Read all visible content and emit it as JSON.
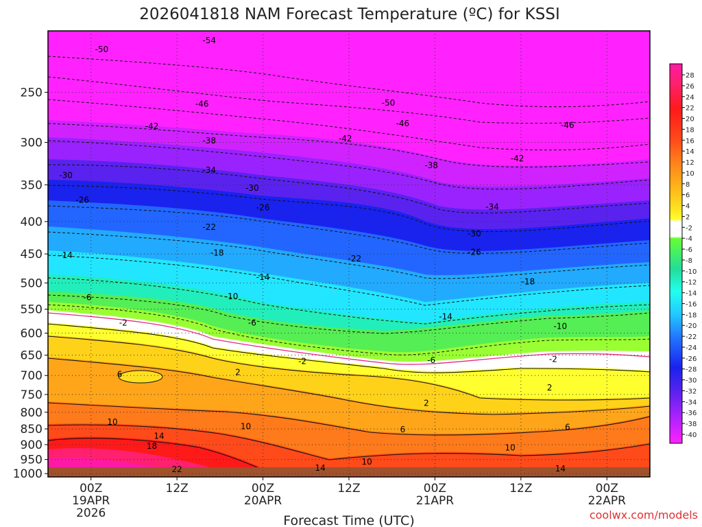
{
  "chart_data": {
    "type": "heatmap",
    "title": "2026041818 NAM Forecast Temperature (ºC) for KSSI",
    "xlabel": "Forecast Time (UTC)",
    "ylabel": "",
    "x_ticks": [
      {
        "hour": 6,
        "labels": [
          "00Z",
          "19APR",
          "2026"
        ]
      },
      {
        "hour": 18,
        "labels": [
          "12Z"
        ]
      },
      {
        "hour": 30,
        "labels": [
          "00Z",
          "20APR"
        ]
      },
      {
        "hour": 42,
        "labels": [
          "12Z"
        ]
      },
      {
        "hour": 54,
        "labels": [
          "00Z",
          "21APR"
        ]
      },
      {
        "hour": 66,
        "labels": [
          "12Z"
        ]
      },
      {
        "hour": 78,
        "labels": [
          "00Z",
          "22APR"
        ]
      }
    ],
    "xlim": [
      0,
      84
    ],
    "y_pressure_ticks": [
      250,
      300,
      350,
      400,
      450,
      500,
      550,
      600,
      650,
      700,
      750,
      800,
      850,
      900,
      950,
      1000
    ],
    "ylim_hPa": [
      200,
      1012
    ],
    "y_scale": "log",
    "grid": true,
    "colorbar": {
      "ticks": [
        28,
        26,
        24,
        22,
        20,
        18,
        16,
        14,
        12,
        10,
        8,
        6,
        4,
        2,
        -2,
        -4,
        -6,
        -8,
        -10,
        -12,
        -14,
        -16,
        -18,
        -20,
        -22,
        -24,
        -26,
        -28,
        -30,
        -32,
        -34,
        -36,
        -38,
        -40
      ],
      "placement": "right"
    },
    "contour_labels": [
      {
        "x": 7.5,
        "p": 214,
        "text": "-50"
      },
      {
        "x": 22.5,
        "p": 207,
        "text": "-54"
      },
      {
        "x": 21.5,
        "p": 261,
        "text": "-46"
      },
      {
        "x": 14.5,
        "p": 283,
        "text": "-42"
      },
      {
        "x": 22.5,
        "p": 298,
        "text": "-38"
      },
      {
        "x": 22.5,
        "p": 332,
        "text": "-34"
      },
      {
        "x": 2.5,
        "p": 338,
        "text": "-30"
      },
      {
        "x": 4.8,
        "p": 370,
        "text": "-26"
      },
      {
        "x": 22.5,
        "p": 408,
        "text": "-22"
      },
      {
        "x": 23.6,
        "p": 448,
        "text": "-18"
      },
      {
        "x": 2.5,
        "p": 452,
        "text": "-14"
      },
      {
        "x": 5.5,
        "p": 527,
        "text": "-6"
      },
      {
        "x": 28.5,
        "p": 354,
        "text": "-30"
      },
      {
        "x": 30,
        "p": 380,
        "text": "-26"
      },
      {
        "x": 30,
        "p": 490,
        "text": "-14"
      },
      {
        "x": 25.6,
        "p": 525,
        "text": "-10"
      },
      {
        "x": 28.5,
        "p": 578,
        "text": "-6"
      },
      {
        "x": 10.5,
        "p": 578,
        "text": "-2"
      },
      {
        "x": 47.5,
        "p": 260,
        "text": "-50"
      },
      {
        "x": 49.5,
        "p": 280,
        "text": "-46"
      },
      {
        "x": 41.5,
        "p": 296,
        "text": "-42"
      },
      {
        "x": 53.5,
        "p": 326,
        "text": "-38"
      },
      {
        "x": 42.8,
        "p": 458,
        "text": "-22"
      },
      {
        "x": 59.5,
        "p": 418,
        "text": "-30"
      },
      {
        "x": 62,
        "p": 379,
        "text": "-34"
      },
      {
        "x": 65.5,
        "p": 318,
        "text": "-42"
      },
      {
        "x": 72.5,
        "p": 282,
        "text": "-46"
      },
      {
        "x": 59.5,
        "p": 447,
        "text": "-26"
      },
      {
        "x": 67,
        "p": 498,
        "text": "-18"
      },
      {
        "x": 55.5,
        "p": 565,
        "text": "-14"
      },
      {
        "x": 71.5,
        "p": 585,
        "text": "-10"
      },
      {
        "x": 53.5,
        "p": 662,
        "text": "-6"
      },
      {
        "x": 35.5,
        "p": 665,
        "text": "-2"
      },
      {
        "x": 70.5,
        "p": 660,
        "text": "-2"
      },
      {
        "x": 26.5,
        "p": 692,
        "text": "2"
      },
      {
        "x": 10,
        "p": 697,
        "text": "6"
      },
      {
        "x": 52.8,
        "p": 774,
        "text": "2"
      },
      {
        "x": 70,
        "p": 732,
        "text": "2"
      },
      {
        "x": 9,
        "p": 829,
        "text": "10"
      },
      {
        "x": 27.6,
        "p": 842,
        "text": "10"
      },
      {
        "x": 49.5,
        "p": 852,
        "text": "6"
      },
      {
        "x": 72.5,
        "p": 845,
        "text": "6"
      },
      {
        "x": 15.5,
        "p": 872,
        "text": "14"
      },
      {
        "x": 14.5,
        "p": 905,
        "text": "18"
      },
      {
        "x": 64.5,
        "p": 910,
        "text": "10"
      },
      {
        "x": 44.5,
        "p": 958,
        "text": "10"
      },
      {
        "x": 38,
        "p": 980,
        "text": "14"
      },
      {
        "x": 71.5,
        "p": 982,
        "text": "14"
      },
      {
        "x": 18,
        "p": 985,
        "text": "22"
      }
    ]
  },
  "credit": "coolwx.com/models",
  "colors": {
    "terrain": "#a0522d",
    "credit": "#e03030",
    "freezing_line": "#e8287a"
  }
}
